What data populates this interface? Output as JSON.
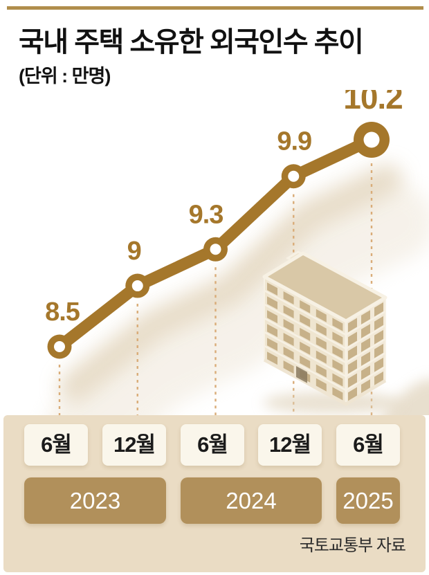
{
  "header": {
    "title": "국내 주택 소유한 외국인수 추이",
    "unit_label": "(단위 : 만명)"
  },
  "source": "국토교통부 자료",
  "colors": {
    "top_bar": "#B08E4C",
    "line_gold": "#A5772B",
    "value_label": "#A5772B",
    "dotted_line": "#D9AC78",
    "line_shadow": "#E6DAC5",
    "panel_bg": "#EADCC4",
    "month_box_bg": "#FAF6EB",
    "month_text": "#1b1b1b",
    "year_box_bg": "#B1905B",
    "year_text": "#FFFFFF",
    "building_roof": "#D9C8A7",
    "building_left_face": "#EFE5D0",
    "building_right_face": "#F2E9D8",
    "building_window": "#C7B189",
    "building_trim": "#F7F1E4"
  },
  "chart_data": {
    "type": "line",
    "title": "국내 주택 소유한 외국인수 추이",
    "unit": "만명",
    "categories": [
      "2023 6월",
      "2023 12월",
      "2024 6월",
      "2024 12월",
      "2025 6월"
    ],
    "month_labels": [
      "6월",
      "12월",
      "6월",
      "12월",
      "6월"
    ],
    "year_groups": [
      {
        "label": "2023",
        "span": 2
      },
      {
        "label": "2024",
        "span": 2
      },
      {
        "label": "2025",
        "span": 1
      }
    ],
    "values": [
      8.5,
      9,
      9.3,
      9.9,
      10.2
    ],
    "value_labels": [
      "8.5",
      "9",
      "9.3",
      "9.9",
      "10.2"
    ],
    "ylim": [
      8.2,
      10.5
    ],
    "grid": false,
    "legend": false,
    "marker": "ring",
    "annotations": [
      "isometric apartment building illustration"
    ]
  }
}
